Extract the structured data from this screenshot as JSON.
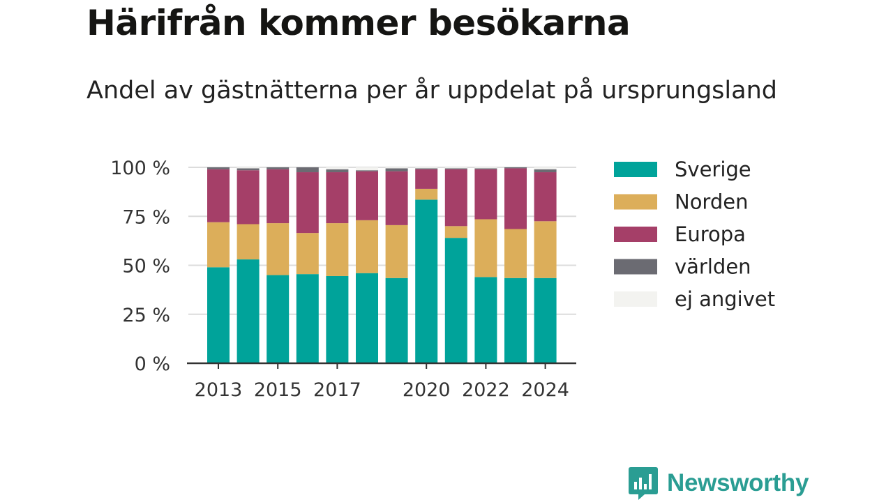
{
  "title": "Härifrån kommer besökarna",
  "subtitle": "Andel av gästnätterna per år uppdelat på ursprungsland",
  "brand": {
    "name": "Newsworthy",
    "icon": "newsworthy-logo-icon"
  },
  "chart_data": {
    "type": "bar",
    "stacked": true,
    "years": [
      2013,
      2014,
      2015,
      2016,
      2017,
      2018,
      2019,
      2020,
      2021,
      2022,
      2023,
      2024
    ],
    "x_tick_labels": [
      "2013",
      "2015",
      "2017",
      "2020",
      "2022",
      "2024"
    ],
    "y_tick_labels": [
      "0 %",
      "25 %",
      "50 %",
      "75 %",
      "100 %"
    ],
    "y_ticks": [
      0,
      25,
      50,
      75,
      100
    ],
    "ylim": [
      0,
      100
    ],
    "xlabel": "",
    "ylabel": "",
    "grid": true,
    "legend_position": "right",
    "series": [
      {
        "name": "Sverige",
        "color": "#00a39a",
        "values": [
          49,
          53,
          45,
          45.5,
          44.5,
          46,
          43.5,
          83.5,
          64,
          44,
          43.5,
          43.5
        ]
      },
      {
        "name": "Norden",
        "color": "#dcae5a",
        "values": [
          23,
          18,
          26.5,
          21,
          27,
          27,
          27,
          5.5,
          6,
          29.5,
          25,
          29
        ]
      },
      {
        "name": "Europa",
        "color": "#a53f68",
        "values": [
          27,
          27.5,
          27.5,
          31,
          26,
          25,
          27.5,
          10,
          29,
          25.5,
          31,
          25
        ]
      },
      {
        "name": "världen",
        "color": "#6b6b72",
        "values": [
          1,
          1,
          1,
          2.5,
          1.5,
          0.5,
          1.5,
          0.5,
          0.5,
          0.5,
          0.5,
          1.5
        ]
      },
      {
        "name": "ej angivet",
        "color": "#f3f3f0",
        "values": [
          0,
          0.5,
          0,
          0,
          1,
          1.5,
          0.5,
          0.5,
          0.5,
          0.5,
          0,
          1
        ]
      }
    ]
  }
}
